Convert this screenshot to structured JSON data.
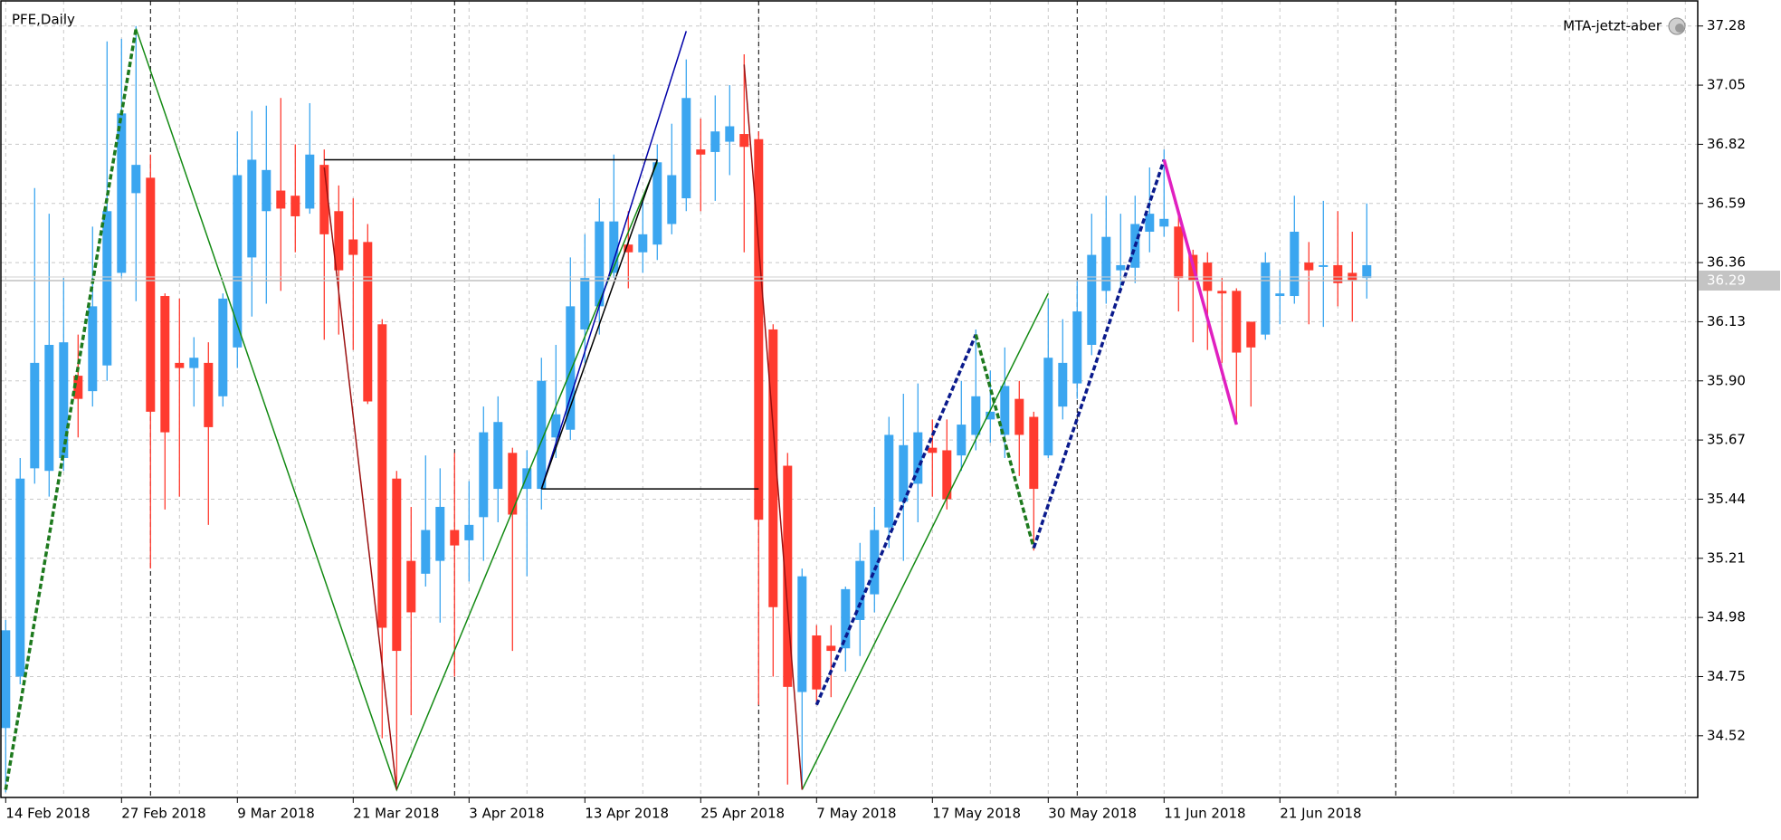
{
  "chart_data": {
    "type": "candlestick",
    "title": "PFE,Daily",
    "indicator_label": "MTA-jetzt-aber",
    "categories": [
      "14 Feb 2018",
      null,
      null,
      null,
      null,
      null,
      null,
      null,
      "27 Feb 2018",
      null,
      null,
      null,
      null,
      null,
      null,
      null,
      "9 Mar 2018",
      null,
      null,
      null,
      null,
      null,
      null,
      null,
      "21 Mar 2018",
      null,
      null,
      null,
      null,
      null,
      null,
      null,
      "3 Apr 2018",
      null,
      null,
      null,
      null,
      null,
      null,
      null,
      "13 Apr 2018",
      null,
      null,
      null,
      null,
      null,
      null,
      null,
      "25 Apr 2018",
      null,
      null,
      null,
      null,
      null,
      null,
      null,
      "7 May 2018",
      null,
      null,
      null,
      null,
      null,
      null,
      null,
      "17 May 2018",
      null,
      null,
      null,
      null,
      null,
      null,
      null,
      "30 May 2018",
      null,
      null,
      null,
      null,
      null,
      null,
      null,
      "11 Jun 2018",
      null,
      null,
      null,
      null,
      null,
      null,
      null,
      "21 Jun 2018",
      null,
      null,
      null,
      null,
      null,
      null
    ],
    "open": [
      34.55,
      34.75,
      35.56,
      35.55,
      35.6,
      35.92,
      35.86,
      35.96,
      36.32,
      36.63,
      36.69,
      36.23,
      35.97,
      35.95,
      35.97,
      35.84,
      36.03,
      36.38,
      36.56,
      36.64,
      36.62,
      36.57,
      36.74,
      36.56,
      36.45,
      36.44,
      36.12,
      35.52,
      35.2,
      35.15,
      35.2,
      35.32,
      35.28,
      35.37,
      35.48,
      35.62,
      35.48,
      35.48,
      35.68,
      35.71,
      36.1,
      36.19,
      36.32,
      36.43,
      36.4,
      36.43,
      36.51,
      36.61,
      36.8,
      36.79,
      36.83,
      36.86,
      36.84,
      36.1,
      35.57,
      34.69,
      34.91,
      34.87,
      34.86,
      34.97,
      35.07,
      35.33,
      35.43,
      35.5,
      35.64,
      35.63,
      35.61,
      35.69,
      35.75,
      35.69,
      35.83,
      35.76,
      35.61,
      35.8,
      35.89,
      36.04,
      36.25,
      36.33,
      36.34,
      36.48,
      36.5,
      36.5,
      36.39,
      36.36,
      36.25,
      36.25,
      36.13,
      36.08,
      36.23,
      36.23,
      36.36,
      36.35,
      36.35,
      36.32,
      36.3
    ],
    "high": [
      34.97,
      35.6,
      36.65,
      36.55,
      36.3,
      36.08,
      36.5,
      37.22,
      37.23,
      37.28,
      36.78,
      36.24,
      36.22,
      36.07,
      36.05,
      36.24,
      36.87,
      36.95,
      36.97,
      37.0,
      36.82,
      36.98,
      36.8,
      36.66,
      36.61,
      36.51,
      36.14,
      35.55,
      35.41,
      35.61,
      35.56,
      35.62,
      35.51,
      35.8,
      35.84,
      35.64,
      35.63,
      35.99,
      36.04,
      36.38,
      36.47,
      36.61,
      36.78,
      36.56,
      36.6,
      36.82,
      36.9,
      37.15,
      36.92,
      37.01,
      37.05,
      37.17,
      36.87,
      36.12,
      35.62,
      35.17,
      34.95,
      34.95,
      35.1,
      35.27,
      35.41,
      35.76,
      35.85,
      35.89,
      35.75,
      35.75,
      35.9,
      36.1,
      35.94,
      36.03,
      35.9,
      35.78,
      36.22,
      36.14,
      36.29,
      36.55,
      36.62,
      36.55,
      36.62,
      36.73,
      36.8,
      36.54,
      36.41,
      36.4,
      36.3,
      36.26,
      36.13,
      36.4,
      36.33,
      36.62,
      36.44,
      36.6,
      36.56,
      36.48,
      36.59
    ],
    "low": [
      34.3,
      34.72,
      35.5,
      35.45,
      35.55,
      35.68,
      35.8,
      35.9,
      36.3,
      36.21,
      35.17,
      35.4,
      35.45,
      35.8,
      35.34,
      35.8,
      35.95,
      36.15,
      36.2,
      36.25,
      36.4,
      36.55,
      36.06,
      36.08,
      36.02,
      35.81,
      34.51,
      34.33,
      34.6,
      35.1,
      34.96,
      34.75,
      35.12,
      35.2,
      35.35,
      34.85,
      35.14,
      35.4,
      35.6,
      35.67,
      35.97,
      36.08,
      36.3,
      36.26,
      36.32,
      36.37,
      36.47,
      36.56,
      36.56,
      36.6,
      36.7,
      36.4,
      34.64,
      34.75,
      34.33,
      34.32,
      34.64,
      34.67,
      34.77,
      34.83,
      35.0,
      35.25,
      35.2,
      35.35,
      35.45,
      35.4,
      35.55,
      35.63,
      35.66,
      35.6,
      35.53,
      35.24,
      35.6,
      35.75,
      35.83,
      36.0,
      36.2,
      36.26,
      36.28,
      36.4,
      36.46,
      36.17,
      36.05,
      36.02,
      35.97,
      35.73,
      35.8,
      36.06,
      36.12,
      36.2,
      36.12,
      36.11,
      36.19,
      36.13,
      36.22
    ],
    "close": [
      34.93,
      35.52,
      35.97,
      36.04,
      36.05,
      35.83,
      36.19,
      36.56,
      36.94,
      36.74,
      35.78,
      35.7,
      35.95,
      35.99,
      35.72,
      36.22,
      36.7,
      36.76,
      36.72,
      36.57,
      36.54,
      36.78,
      36.47,
      36.33,
      36.39,
      35.82,
      34.94,
      34.85,
      35.0,
      35.32,
      35.41,
      35.26,
      35.34,
      35.7,
      35.74,
      35.38,
      35.56,
      35.9,
      35.77,
      36.19,
      36.3,
      36.52,
      36.52,
      36.4,
      36.47,
      36.75,
      36.7,
      37.0,
      36.78,
      36.87,
      36.89,
      36.81,
      35.36,
      35.02,
      34.71,
      35.14,
      34.7,
      34.85,
      35.09,
      35.2,
      35.32,
      35.69,
      35.65,
      35.7,
      35.62,
      35.44,
      35.73,
      35.84,
      35.78,
      35.88,
      35.69,
      35.48,
      35.99,
      35.97,
      36.17,
      36.39,
      36.46,
      36.35,
      36.51,
      36.55,
      36.53,
      36.3,
      36.29,
      36.25,
      36.24,
      36.01,
      36.03,
      36.36,
      36.24,
      36.48,
      36.33,
      36.35,
      36.28,
      36.29,
      36.35
    ],
    "up_color": "#3ba6f0",
    "down_color": "#ff3b2f",
    "ylim": [
      34.28,
      37.36
    ],
    "yticks": [
      37.28,
      37.05,
      36.82,
      36.59,
      36.36,
      36.13,
      {
        "value": 35.9,
        "label": "35.90"
      },
      35.67,
      35.44,
      35.21,
      34.98,
      34.75,
      34.52
    ],
    "grid": true,
    "last_price": 36.29,
    "overlays": [
      {
        "color": "#1e7a1e",
        "dashed": true,
        "thick": true,
        "x": [
          0,
          9
        ],
        "values": [
          34.31,
          37.27
        ]
      },
      {
        "color": "#138a13",
        "dashed": false,
        "thick": false,
        "x": [
          9,
          27,
          45
        ],
        "values": [
          37.27,
          34.31,
          36.75
        ]
      },
      {
        "color": "#138a13",
        "dashed": false,
        "thick": false,
        "x": [
          55,
          72
        ],
        "values": [
          34.31,
          36.24
        ]
      },
      {
        "color": "#9b1010",
        "dashed": false,
        "thick": false,
        "x": [
          22,
          27
        ],
        "values": [
          36.73,
          34.31
        ]
      },
      {
        "color": "#9b1010",
        "dashed": false,
        "thick": false,
        "x": [
          51,
          55
        ],
        "values": [
          37.13,
          34.31
        ]
      },
      {
        "color": "#0000a8",
        "dashed": false,
        "thick": false,
        "x": [
          37,
          47
        ],
        "values": [
          35.48,
          37.26
        ]
      },
      {
        "color": "#000000",
        "dashed": false,
        "thick": false,
        "x": [
          22,
          45
        ],
        "values": [
          36.76,
          36.76
        ]
      },
      {
        "color": "#000000",
        "dashed": false,
        "thick": false,
        "x": [
          37,
          52
        ],
        "values": [
          35.48,
          35.48
        ]
      },
      {
        "color": "#000000",
        "dashed": false,
        "thick": false,
        "x": [
          37,
          45
        ],
        "values": [
          35.48,
          36.76
        ]
      },
      {
        "color": "#0a1a8c",
        "dashed": true,
        "thick": true,
        "x": [
          56,
          67
        ],
        "values": [
          34.64,
          36.08
        ]
      },
      {
        "color": "#1e7a1e",
        "dashed": true,
        "thick": true,
        "x": [
          67,
          71
        ],
        "values": [
          36.08,
          35.25
        ]
      },
      {
        "color": "#0a1a8c",
        "dashed": true,
        "thick": true,
        "x": [
          71,
          80
        ],
        "values": [
          35.25,
          36.76
        ]
      },
      {
        "color": "#e020c0",
        "dashed": false,
        "thick": true,
        "x": [
          80,
          85
        ],
        "values": [
          36.76,
          35.73
        ]
      }
    ]
  }
}
